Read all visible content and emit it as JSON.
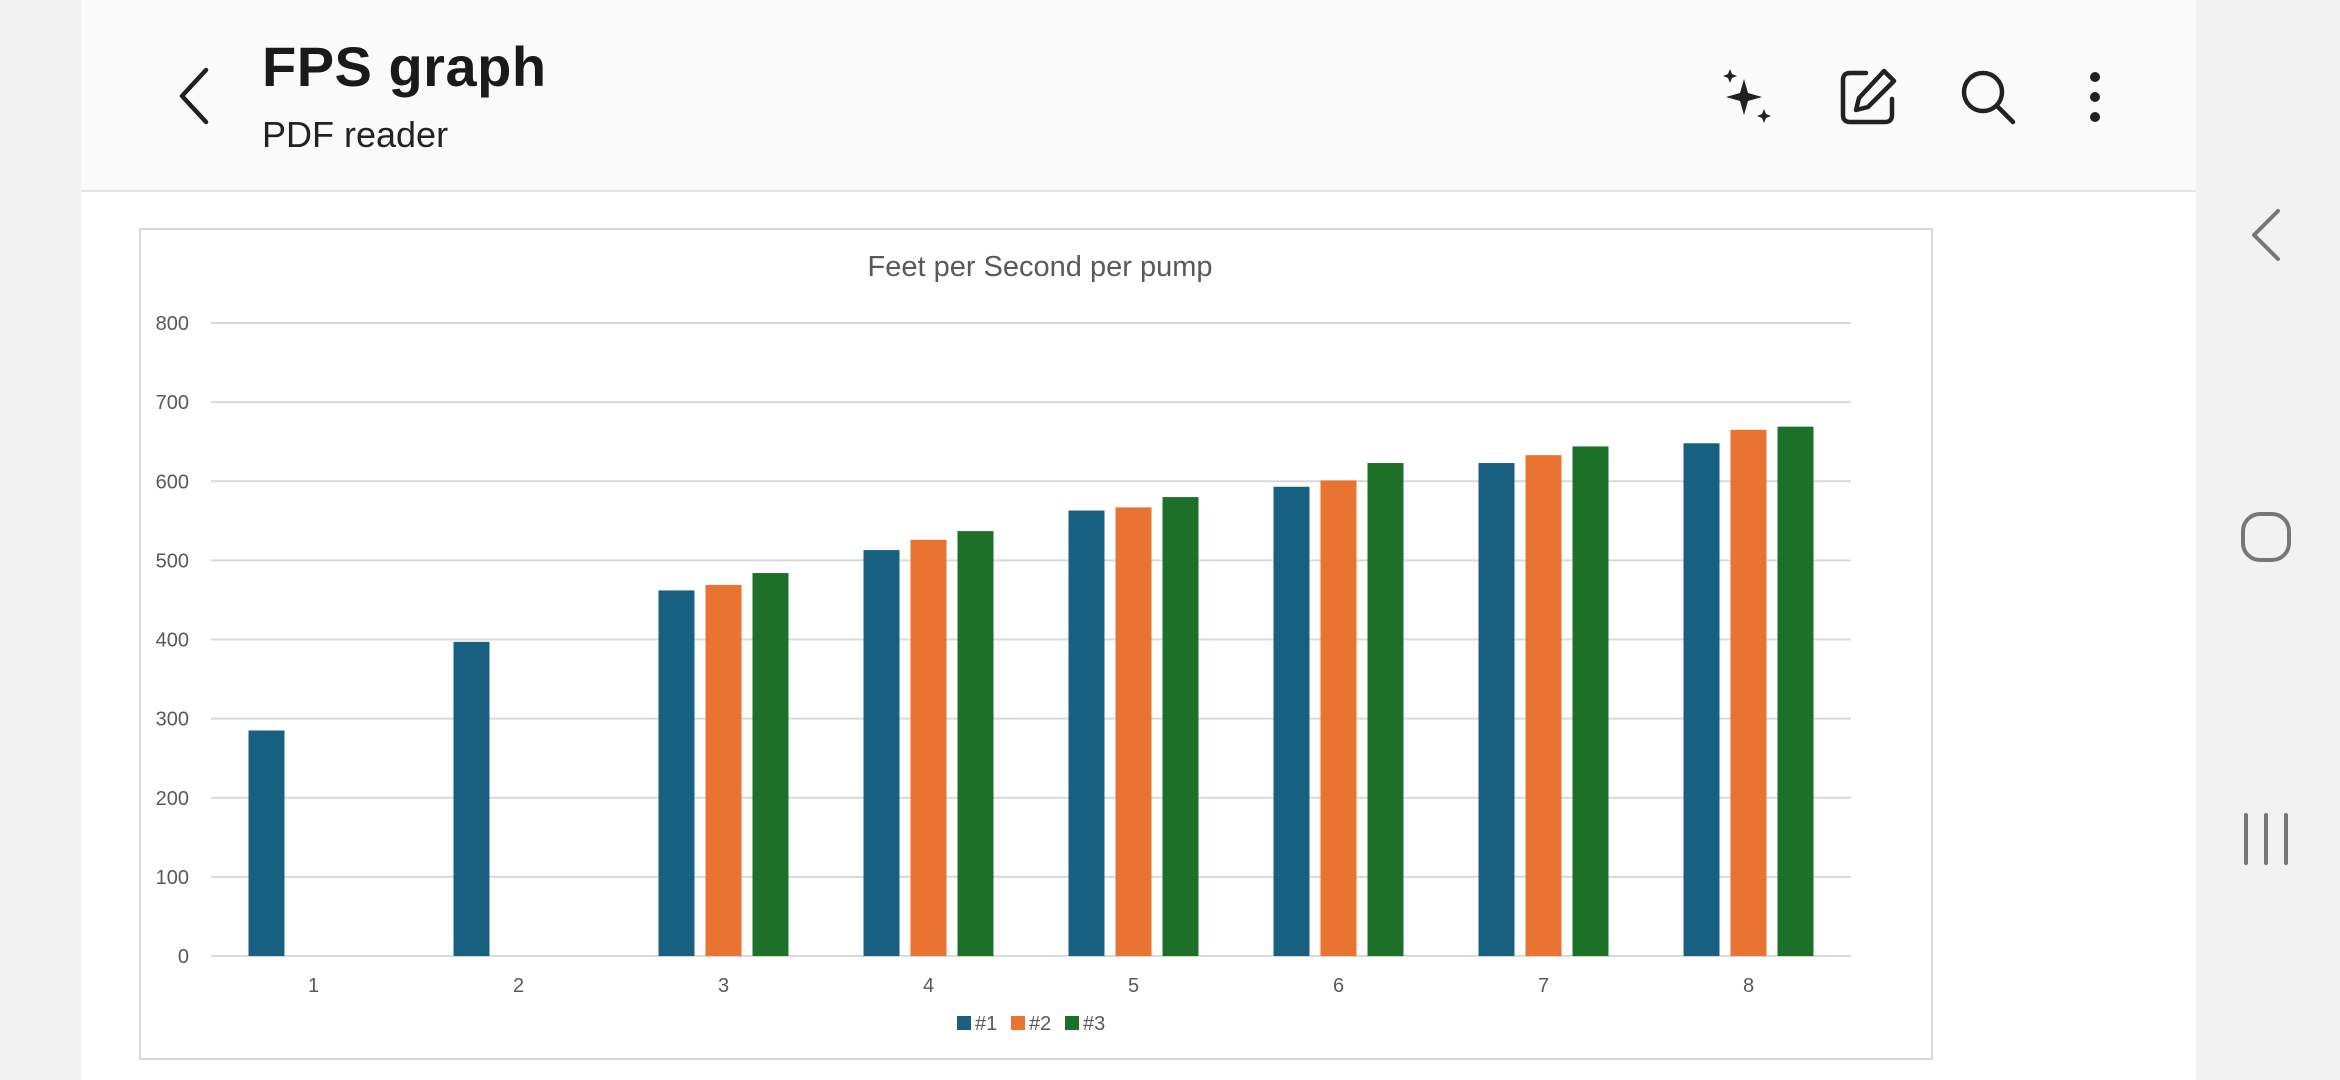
{
  "header": {
    "title": "FPS graph",
    "subtitle": "PDF reader",
    "actions": [
      "sparkle-ai-icon",
      "edit-icon",
      "search-icon",
      "more-vert-icon"
    ]
  },
  "system_nav": [
    "back-icon",
    "home-icon",
    "recents-icon"
  ],
  "colors": {
    "series1": "#17607f",
    "series2": "#e97431",
    "series3": "#1c7028",
    "grid": "#d9d9d9",
    "text": "#595959"
  },
  "chart_data": {
    "type": "bar",
    "title": "Feet per Second per pump",
    "categories": [
      "1",
      "2",
      "3",
      "4",
      "5",
      "6",
      "7",
      "8"
    ],
    "series": [
      {
        "name": "#1",
        "values": [
          285,
          397,
          462,
          513,
          563,
          593,
          623,
          648
        ]
      },
      {
        "name": "#2",
        "values": [
          null,
          null,
          469,
          526,
          567,
          601,
          633,
          665
        ]
      },
      {
        "name": "#3",
        "values": [
          null,
          null,
          484,
          537,
          580,
          623,
          644,
          669
        ]
      }
    ],
    "ylim": [
      0,
      800
    ],
    "yticks": [
      "0",
      "100",
      "200",
      "300",
      "400",
      "500",
      "600",
      "700",
      "800"
    ],
    "grid": true,
    "legend": "bottom"
  }
}
